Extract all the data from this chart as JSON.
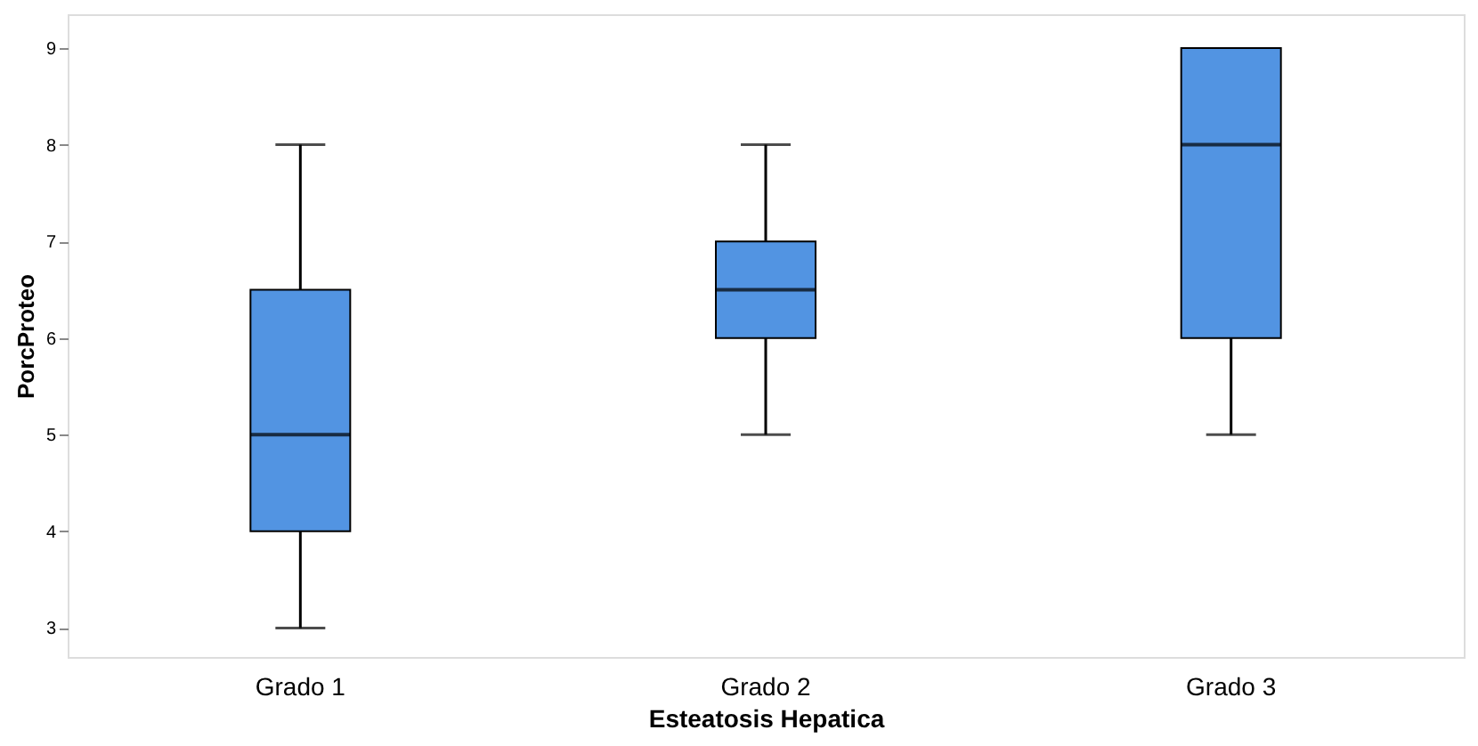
{
  "chart_data": {
    "type": "box",
    "xlabel": "Esteatosis Hepatica",
    "ylabel": "PorcProteo",
    "categories": [
      "Grado 1",
      "Grado 2",
      "Grado 3"
    ],
    "color": "#5294e2",
    "boxes": [
      {
        "low": 3,
        "q1": 4,
        "median": 5,
        "q3": 6.5,
        "high": 8
      },
      {
        "low": 5,
        "q1": 6,
        "median": 6.5,
        "q3": 7,
        "high": 8
      },
      {
        "low": 5,
        "q1": 6,
        "median": 8,
        "q3": 9,
        "high": 9
      }
    ],
    "ylim": [
      2.7,
      9.35
    ],
    "yticks": [
      3,
      4,
      5,
      6,
      7,
      8,
      9
    ]
  }
}
